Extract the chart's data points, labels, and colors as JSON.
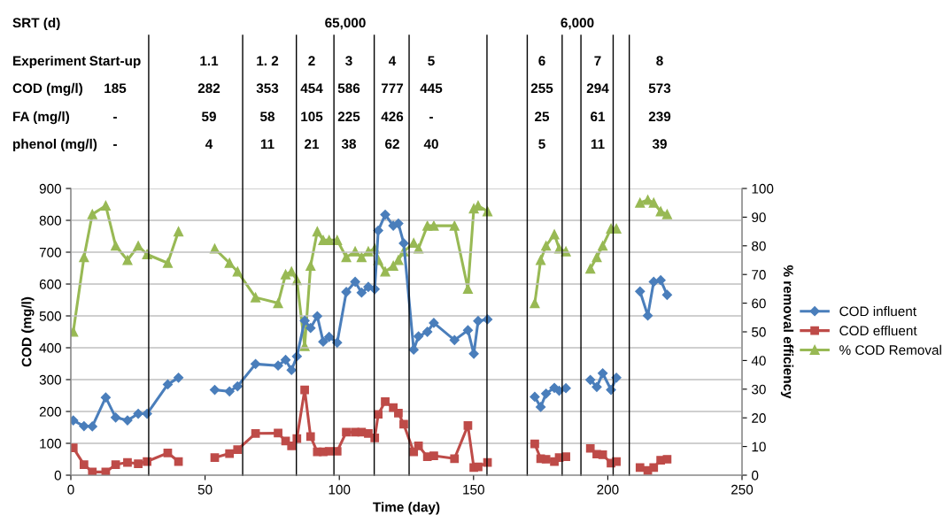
{
  "chart_data": {
    "type": "line",
    "xlabel": "Time (day)",
    "ylabel": "COD (mg/l)",
    "y2label": "% removal efficiency",
    "xlim": [
      0,
      250
    ],
    "xticks": [
      0,
      50,
      100,
      150,
      200,
      250
    ],
    "ylim": [
      0,
      900
    ],
    "yticks": [
      0,
      100,
      200,
      300,
      400,
      500,
      600,
      700,
      800,
      900
    ],
    "y2lim": [
      0,
      100
    ],
    "y2ticks": [
      0,
      10,
      20,
      30,
      40,
      50,
      60,
      70,
      80,
      90,
      100
    ],
    "grid": "y",
    "legend": "right",
    "x": [
      0.9,
      4.9,
      8.0,
      13.0,
      16.7,
      21.1,
      25.1,
      28.4,
      36.1,
      40.1,
      47,
      53.6,
      59.1,
      62.1,
      68.8,
      77.2,
      80.0,
      82.2,
      84.2,
      87.1,
      89.3,
      91.8,
      94.0,
      96.2,
      99.2,
      102.6,
      105.9,
      108.3,
      110.8,
      113.2,
      114.5,
      117.1,
      120.1,
      122.0,
      124.0,
      127.7,
      129.5,
      132.8,
      135.2,
      142.9,
      147.9,
      150.1,
      151.7,
      155.2,
      164,
      172.8,
      175.0,
      177.0,
      180.1,
      181.9,
      184.4,
      189,
      193.5,
      195.9,
      198.1,
      201.2,
      203.2,
      208,
      212.0,
      214.9,
      217.1,
      219.7,
      222.1
    ],
    "series": [
      {
        "name": "COD influent",
        "color": "#4a7ebb",
        "marker": "diamond",
        "values": [
          172,
          154,
          153,
          244,
          181,
          172,
          193,
          193,
          285,
          306,
          null,
          268,
          263,
          279,
          349,
          344,
          362,
          330,
          373,
          485,
          462,
          499,
          419,
          434,
          416,
          575,
          607,
          573,
          591,
          584,
          768,
          818,
          783,
          790,
          728,
          394,
          436,
          450,
          478,
          424,
          455,
          381,
          484,
          489,
          null,
          246,
          214,
          256,
          274,
          265,
          273,
          null,
          299,
          277,
          320,
          268,
          306,
          null,
          577,
          501,
          607,
          612,
          566
        ]
      },
      {
        "name": "COD effluent",
        "color": "#be4b48",
        "marker": "square",
        "values": [
          86,
          33,
          10,
          10,
          33,
          40,
          36,
          43,
          70,
          43,
          null,
          55,
          68,
          80,
          131,
          132,
          107,
          92,
          115,
          268,
          121,
          73,
          73,
          75,
          75,
          135,
          135,
          135,
          131,
          117,
          191,
          231,
          212,
          195,
          160,
          73,
          92,
          58,
          61,
          52,
          156,
          24,
          26,
          40,
          null,
          98,
          52,
          50,
          43,
          55,
          58,
          null,
          84,
          66,
          64,
          38,
          43,
          null,
          24,
          15,
          24,
          47,
          50
        ]
      },
      {
        "name": "% COD Removal",
        "color": "#98b954",
        "marker": "triangle",
        "axis": "y2",
        "values": [
          50,
          76,
          91,
          94,
          80,
          75,
          80,
          77,
          74,
          85,
          null,
          79,
          74,
          71,
          62,
          60,
          70,
          71,
          68,
          45,
          73,
          85,
          82,
          82,
          82,
          76,
          78,
          76,
          78,
          79,
          75,
          71,
          73,
          75,
          78,
          81,
          79,
          87,
          87,
          87,
          65,
          93,
          94,
          92,
          null,
          60,
          75,
          80,
          84,
          79,
          78,
          null,
          72,
          76,
          80,
          86,
          86,
          null,
          95,
          96,
          95,
          92,
          91
        ]
      }
    ],
    "ref_lines": [
      {
        "axis": "x",
        "value": 29,
        "color": "#000000"
      },
      {
        "axis": "x",
        "value": 64,
        "color": "#000000"
      },
      {
        "axis": "x",
        "value": 84,
        "color": "#000000"
      },
      {
        "axis": "x",
        "value": 98,
        "color": "#000000"
      },
      {
        "axis": "x",
        "value": 113,
        "color": "#000000"
      },
      {
        "axis": "x",
        "value": 126,
        "color": "#000000"
      },
      {
        "axis": "x",
        "value": 155,
        "color": "#000000"
      },
      {
        "axis": "x",
        "value": 170,
        "color": "#000000"
      },
      {
        "axis": "x",
        "value": 183,
        "color": "#000000"
      },
      {
        "axis": "x",
        "value": 190,
        "color": "#000000"
      },
      {
        "axis": "x",
        "value": 202,
        "color": "#000000"
      },
      {
        "axis": "x",
        "value": 208,
        "color": "#000000"
      }
    ],
    "annotations": [
      "SRT (d)",
      "65,000",
      "6,000",
      "Experiment",
      "Start-up",
      "1.1",
      "1. 2",
      "2",
      "3",
      "4",
      "5",
      "6",
      "7",
      "8",
      "COD (mg/l)",
      "185",
      "282",
      "353",
      "454",
      "586",
      "777",
      "445",
      "255",
      "294",
      "573",
      "FA (mg/l)",
      "-",
      "59",
      "58",
      "105",
      "225",
      "426",
      "-",
      "25",
      "61",
      "239",
      "phenol (mg/l)",
      "-",
      "4",
      "11",
      "21",
      "38",
      "62",
      "40",
      "5",
      "11",
      "39"
    ]
  }
}
